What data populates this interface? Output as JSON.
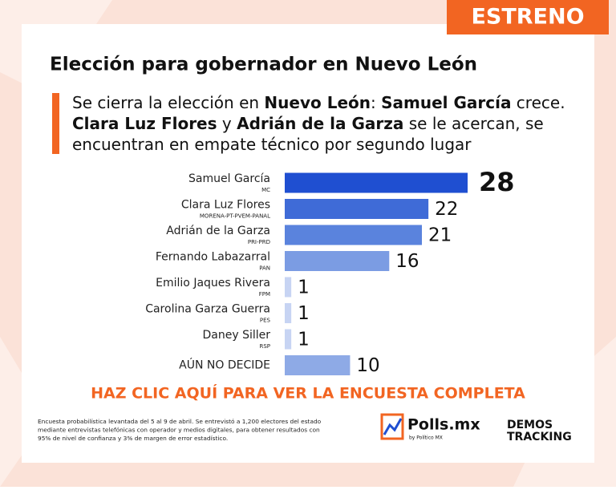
{
  "badge": "ESTRENO",
  "chart_data": {
    "type": "bar",
    "orientation": "horizontal",
    "title": "Elección para gobernador en Nuevo León",
    "subtitle": [
      [
        {
          "text": "Se cierra la elección en ",
          "bold": false
        },
        {
          "text": "Nuevo León",
          "bold": true
        },
        {
          "text": ": ",
          "bold": false
        },
        {
          "text": "Samuel García",
          "bold": true
        },
        {
          "text": " crece.",
          "bold": false
        }
      ],
      [
        {
          "text": "Clara Luz Flores",
          "bold": true
        },
        {
          "text": " y ",
          "bold": false
        },
        {
          "text": "Adrián de la Garza",
          "bold": true
        },
        {
          "text": " se le acercan, se",
          "bold": false
        }
      ],
      [
        {
          "text": "encuentran en empate técnico por segundo lugar",
          "bold": false
        }
      ]
    ],
    "categories": [
      "Samuel García",
      "Clara Luz Flores",
      "Adrián de la Garza",
      "Fernando Labazarral",
      "Emilio Jaques Rivera",
      "Carolina Garza Guerra",
      "Daney Siller",
      "AÚN NO DECIDE"
    ],
    "parties": [
      "MC",
      "MORENA-PT-PVEM-PANAL",
      "PRI-PRD",
      "PAN",
      "FPM",
      "PES",
      "RSP",
      null
    ],
    "values": [
      28,
      22,
      21,
      16,
      1,
      1,
      1,
      10
    ],
    "colors": [
      "#1f4fd1",
      "#3f6bd7",
      "#5a83dd",
      "#7b9ce3",
      "#c7d4f3",
      "#c7d4f3",
      "#c7d4f3",
      "#8eaae6"
    ]
  },
  "cta": "HAZ CLIC AQUÍ PARA VER LA ENCUESTA COMPLETA",
  "footnote": [
    "Encuesta probabilística levantada del 5 al 9 de abril. Se entrevistó a 1,200 electores del estado",
    "mediante entrevistas telefónicas con operador y medios digitales, para obtener resultados con",
    "95% de nivel de confianza y 3% de margen de error estadístico."
  ],
  "logos": {
    "polls": "Polls.mx",
    "polls_by": "by Político MX",
    "demos": "DEMOS",
    "tracking": "TRACKING"
  }
}
